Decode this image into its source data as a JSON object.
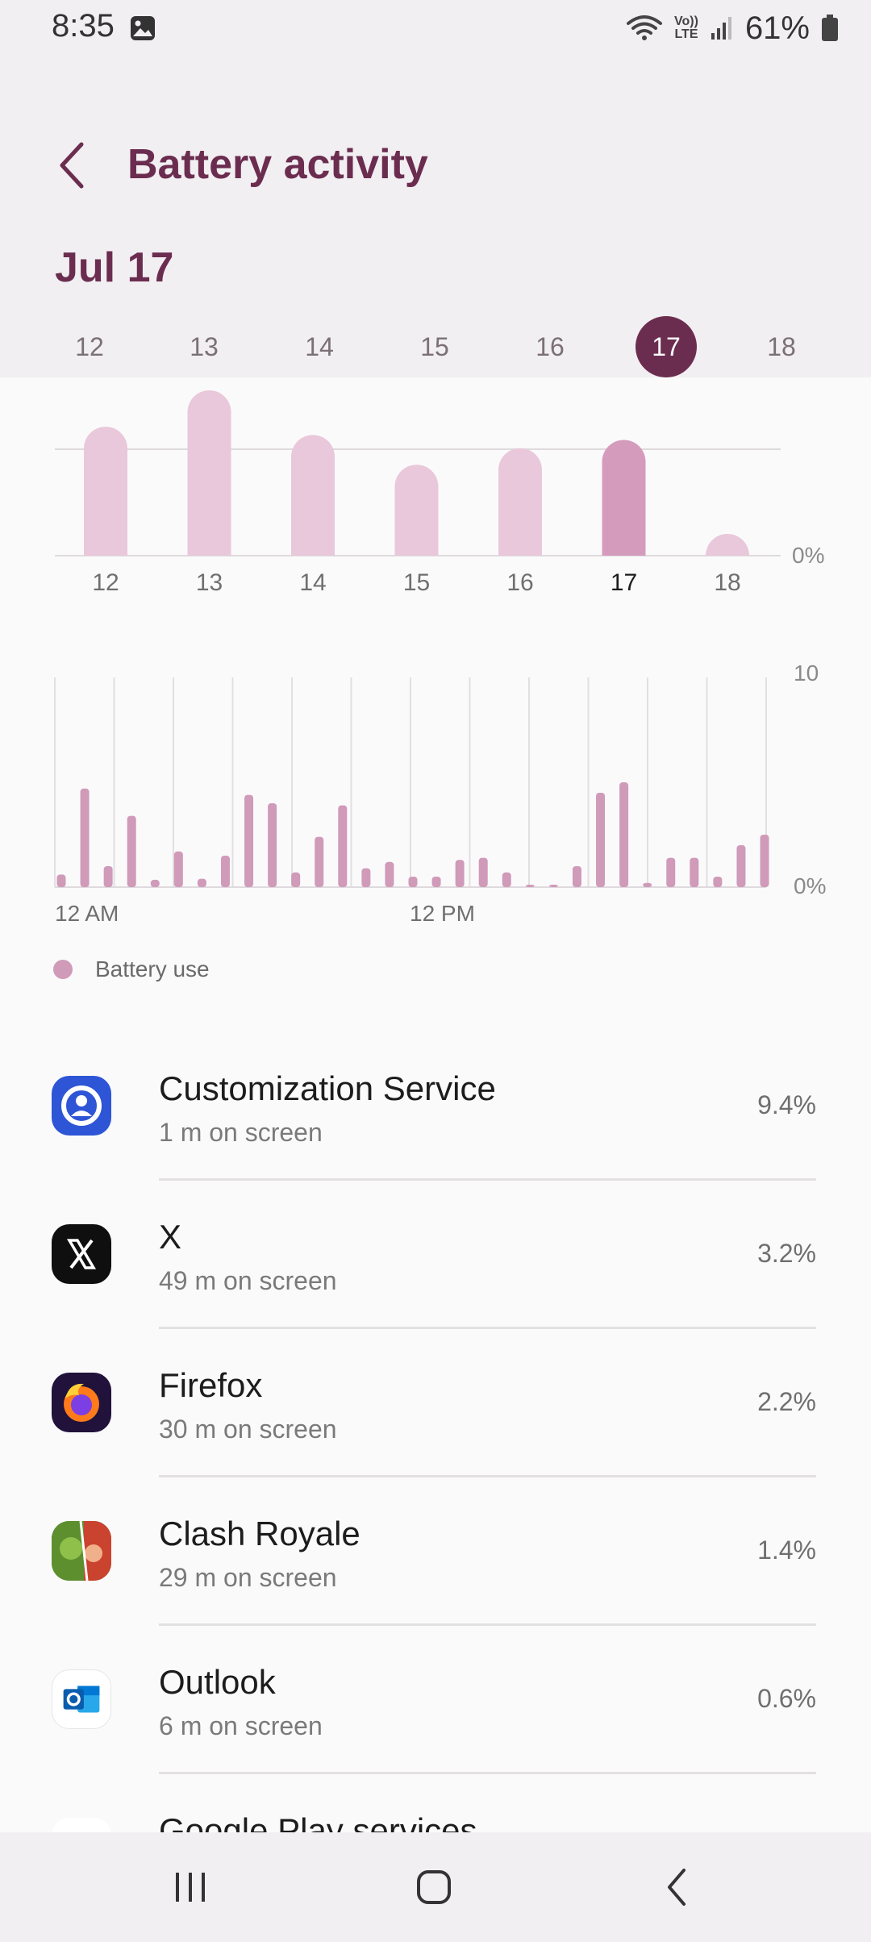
{
  "status_bar": {
    "time": "8:35",
    "battery_percent": "61%",
    "network_label_top": "Vo))",
    "network_label_bottom": "LTE"
  },
  "header": {
    "title": "Battery activity",
    "date": "Jul 17"
  },
  "day_selector": {
    "days": [
      "12",
      "13",
      "14",
      "15",
      "16",
      "17",
      "18"
    ],
    "selected": "17"
  },
  "chart_data": [
    {
      "type": "bar",
      "categories": [
        "12",
        "13",
        "14",
        "15",
        "16",
        "17",
        "18"
      ],
      "values": [
        78,
        100,
        73,
        55,
        65,
        70,
        11
      ],
      "selected_category": "17",
      "y_axis_label": "0%",
      "colors": {
        "bar": "#e8c8da",
        "selected_bar": "#d59bbd"
      }
    },
    {
      "type": "bar",
      "x_tick_labels": [
        "12 AM",
        "12 PM"
      ],
      "y_axis_labels": [
        "10",
        "0%"
      ],
      "ylim": [
        0,
        10
      ],
      "values": [
        0.6,
        4.7,
        1.0,
        3.4,
        0.35,
        1.7,
        0.4,
        1.5,
        4.4,
        4.0,
        0.7,
        2.4,
        3.9,
        0.9,
        1.2,
        0.5,
        0.5,
        1.3,
        1.4,
        0.7,
        0.1,
        0.1,
        1.0,
        4.5,
        5.0,
        0.2,
        1.4,
        1.4,
        0.5,
        2.0,
        2.5
      ],
      "series_name": "Battery use",
      "color": "#d09ab9"
    }
  ],
  "legend": {
    "label": "Battery use"
  },
  "apps": [
    {
      "name": "Customization Service",
      "screen_time": "1 m on screen",
      "percent": "9.4%",
      "icon": "customization-service-icon"
    },
    {
      "name": "X",
      "screen_time": "49 m on screen",
      "percent": "3.2%",
      "icon": "x-icon"
    },
    {
      "name": "Firefox",
      "screen_time": "30 m on screen",
      "percent": "2.2%",
      "icon": "firefox-icon"
    },
    {
      "name": "Clash Royale",
      "screen_time": "29 m on screen",
      "percent": "1.4%",
      "icon": "clash-royale-icon"
    },
    {
      "name": "Outlook",
      "screen_time": "6 m on screen",
      "percent": "0.6%",
      "icon": "outlook-icon"
    },
    {
      "name": "Google Play services",
      "screen_time": "",
      "percent": "",
      "icon": "google-play-services-icon"
    }
  ]
}
